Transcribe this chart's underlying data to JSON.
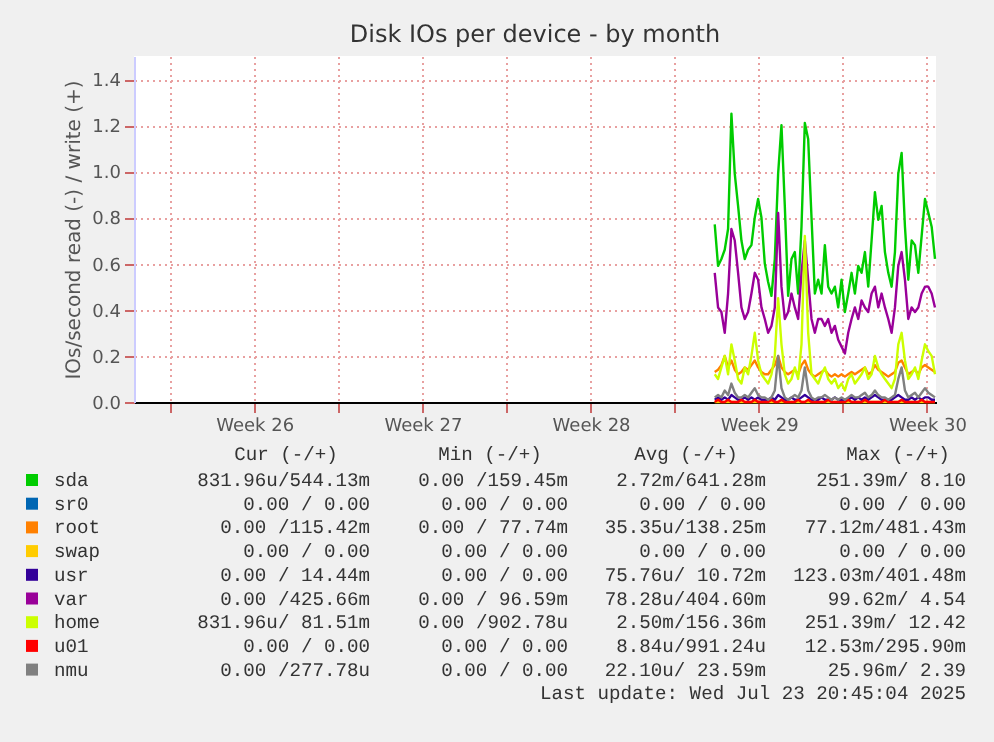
{
  "chart_data": {
    "type": "line",
    "title": "Disk IOs per device - by month",
    "ylabel": "IOs/second read (-) / write (+)",
    "x": [
      "2025-07-14T16:00",
      "2025-07-14T19:20",
      "2025-07-14T22:40",
      "2025-07-15T02:00",
      "2025-07-15T05:20",
      "2025-07-15T08:40",
      "2025-07-15T12:00",
      "2025-07-15T15:20",
      "2025-07-15T18:40",
      "2025-07-15T22:00",
      "2025-07-16T01:20",
      "2025-07-16T04:40",
      "2025-07-16T08:00",
      "2025-07-16T11:20",
      "2025-07-16T14:40",
      "2025-07-16T18:00",
      "2025-07-16T21:20",
      "2025-07-17T00:40",
      "2025-07-17T04:00",
      "2025-07-17T07:20",
      "2025-07-17T10:40",
      "2025-07-17T14:00",
      "2025-07-17T17:20",
      "2025-07-17T20:40",
      "2025-07-18T00:00",
      "2025-07-18T03:20",
      "2025-07-18T06:40",
      "2025-07-18T10:00",
      "2025-07-18T13:20",
      "2025-07-18T16:40",
      "2025-07-18T20:00",
      "2025-07-18T23:20",
      "2025-07-19T02:40",
      "2025-07-19T06:00",
      "2025-07-19T09:20",
      "2025-07-19T12:40",
      "2025-07-19T16:00",
      "2025-07-19T19:20",
      "2025-07-19T22:40",
      "2025-07-20T02:00",
      "2025-07-20T05:20",
      "2025-07-20T08:40",
      "2025-07-20T12:00",
      "2025-07-20T15:20",
      "2025-07-20T18:40",
      "2025-07-20T22:00",
      "2025-07-21T01:20",
      "2025-07-21T04:40",
      "2025-07-21T08:00",
      "2025-07-21T11:20",
      "2025-07-21T14:40",
      "2025-07-21T18:00",
      "2025-07-21T21:20",
      "2025-07-22T00:40",
      "2025-07-22T04:00",
      "2025-07-22T07:20",
      "2025-07-22T10:40",
      "2025-07-22T14:00",
      "2025-07-22T17:20",
      "2025-07-22T20:40",
      "2025-07-23T00:00",
      "2025-07-23T03:20",
      "2025-07-23T06:40",
      "2025-07-23T10:00",
      "2025-07-23T13:20",
      "2025-07-23T16:40",
      "2025-07-23T20:00"
    ],
    "series": [
      {
        "name": "sda",
        "color": "#00cc00",
        "values": [
          0.77,
          0.59,
          0.62,
          0.66,
          0.75,
          1.25,
          0.99,
          0.85,
          0.7,
          0.62,
          0.66,
          0.68,
          0.8,
          0.88,
          0.8,
          0.6,
          0.52,
          0.46,
          0.62,
          0.99,
          1.2,
          0.85,
          0.46,
          0.62,
          0.65,
          0.47,
          0.76,
          1.21,
          1.14,
          0.8,
          0.47,
          0.53,
          0.47,
          0.68,
          0.5,
          0.47,
          0.5,
          0.41,
          0.53,
          0.39,
          0.47,
          0.56,
          0.47,
          0.59,
          0.56,
          0.65,
          0.5,
          0.7,
          0.91,
          0.79,
          0.85,
          0.65,
          0.56,
          0.5,
          0.65,
          0.99,
          1.08,
          0.76,
          0.53,
          0.7,
          0.68,
          0.56,
          0.72,
          0.88,
          0.82,
          0.76,
          0.62
        ]
      },
      {
        "name": "sr0",
        "color": "#0066b3",
        "values": [
          null,
          null,
          null,
          null,
          null,
          null,
          null,
          null,
          null,
          null,
          null,
          null,
          null,
          null,
          null,
          null,
          null,
          null,
          null,
          null,
          null,
          null,
          null,
          null,
          null,
          null,
          null,
          null,
          null,
          null,
          null,
          null,
          null,
          null,
          null,
          null,
          null,
          null,
          null,
          null,
          null,
          null,
          null,
          null,
          null,
          null,
          null,
          null,
          null,
          null,
          null,
          null,
          null,
          null,
          null,
          null,
          null,
          null,
          null,
          null,
          null,
          null,
          null,
          null,
          null,
          null,
          null
        ]
      },
      {
        "name": "root",
        "color": "#ff8000",
        "values": [
          0.13,
          0.14,
          0.16,
          0.2,
          0.15,
          0.18,
          0.14,
          0.12,
          0.13,
          0.15,
          0.14,
          0.16,
          0.18,
          0.15,
          0.13,
          0.12,
          0.12,
          0.14,
          0.16,
          0.2,
          0.15,
          0.13,
          0.12,
          0.13,
          0.14,
          0.12,
          0.16,
          0.18,
          0.14,
          0.12,
          0.11,
          0.12,
          0.13,
          0.14,
          0.12,
          0.11,
          0.12,
          0.11,
          0.12,
          0.11,
          0.12,
          0.13,
          0.12,
          0.13,
          0.14,
          0.15,
          0.12,
          0.13,
          0.16,
          0.14,
          0.13,
          0.12,
          0.11,
          0.12,
          0.13,
          0.17,
          0.18,
          0.15,
          0.12,
          0.13,
          0.14,
          0.12,
          0.15,
          0.16,
          0.15,
          0.14,
          0.13
        ]
      },
      {
        "name": "swap",
        "color": "#ffcc00",
        "values": [
          0,
          0,
          0,
          0,
          0,
          0,
          0,
          0,
          0,
          0,
          0,
          0,
          0,
          0,
          0,
          0,
          0,
          0,
          0,
          0,
          0,
          0,
          0,
          0,
          0,
          0,
          0,
          0,
          0,
          0,
          0,
          0,
          0,
          0,
          0,
          0,
          0,
          0,
          0,
          0,
          0,
          0,
          0,
          0,
          0,
          0,
          0,
          0,
          0,
          0,
          0,
          0,
          0,
          0,
          0,
          0,
          0,
          0,
          0,
          0,
          0,
          0,
          0,
          0,
          0,
          0,
          0
        ]
      },
      {
        "name": "usr",
        "color": "#330099",
        "values": [
          0.01,
          0.02,
          0.01,
          0.02,
          0.01,
          0.03,
          0.02,
          0.01,
          0.01,
          0.02,
          0.01,
          0.02,
          0.01,
          0.02,
          0.01,
          0.01,
          0.01,
          0.02,
          0.01,
          0.03,
          0.02,
          0.01,
          0.01,
          0.02,
          0.01,
          0.01,
          0.02,
          0.03,
          0.02,
          0.01,
          0.01,
          0.01,
          0.02,
          0.01,
          0.01,
          0.01,
          0.02,
          0.01,
          0.01,
          0.01,
          0.01,
          0.02,
          0.01,
          0.02,
          0.01,
          0.02,
          0.01,
          0.02,
          0.03,
          0.02,
          0.01,
          0.01,
          0.01,
          0.01,
          0.02,
          0.03,
          0.02,
          0.01,
          0.01,
          0.02,
          0.01,
          0.02,
          0.01,
          0.02,
          0.02,
          0.01,
          0.01
        ]
      },
      {
        "name": "var",
        "color": "#990099",
        "values": [
          0.56,
          0.41,
          0.39,
          0.3,
          0.47,
          0.75,
          0.7,
          0.56,
          0.41,
          0.36,
          0.39,
          0.47,
          0.56,
          0.53,
          0.41,
          0.36,
          0.3,
          0.33,
          0.41,
          0.82,
          0.5,
          0.36,
          0.39,
          0.47,
          0.41,
          0.36,
          0.56,
          0.7,
          0.53,
          0.36,
          0.3,
          0.36,
          0.36,
          0.33,
          0.36,
          0.3,
          0.33,
          0.27,
          0.24,
          0.21,
          0.3,
          0.36,
          0.41,
          0.36,
          0.44,
          0.41,
          0.39,
          0.47,
          0.5,
          0.41,
          0.47,
          0.41,
          0.36,
          0.3,
          0.41,
          0.59,
          0.65,
          0.53,
          0.36,
          0.41,
          0.39,
          0.41,
          0.47,
          0.5,
          0.5,
          0.47,
          0.41
        ]
      },
      {
        "name": "home",
        "color": "#ccff00",
        "values": [
          0.12,
          0.1,
          0.15,
          0.2,
          0.12,
          0.25,
          0.18,
          0.1,
          0.08,
          0.15,
          0.12,
          0.2,
          0.3,
          0.18,
          0.12,
          0.1,
          0.08,
          0.12,
          0.2,
          0.45,
          0.25,
          0.12,
          0.08,
          0.1,
          0.15,
          0.1,
          0.25,
          0.72,
          0.3,
          0.12,
          0.1,
          0.08,
          0.12,
          0.15,
          0.1,
          0.08,
          0.1,
          0.06,
          0.08,
          0.05,
          0.1,
          0.12,
          0.08,
          0.1,
          0.12,
          0.15,
          0.1,
          0.12,
          0.2,
          0.15,
          0.12,
          0.1,
          0.08,
          0.06,
          0.1,
          0.25,
          0.3,
          0.18,
          0.1,
          0.12,
          0.15,
          0.1,
          0.18,
          0.25,
          0.22,
          0.2,
          0.12
        ]
      },
      {
        "name": "u01",
        "color": "#ff0000",
        "values": [
          0.0,
          0.01,
          0.0,
          0.0,
          0.01,
          0.0,
          0.0,
          0.0,
          0.01,
          0.0,
          0.0,
          0.0,
          0.01,
          0.0,
          0.0,
          0.0,
          0.0,
          0.01,
          0.0,
          0.0,
          0.01,
          0.0,
          0.0,
          0.0,
          0.0,
          0.01,
          0.0,
          0.0,
          0.01,
          0.0,
          0.0,
          0.0,
          0.0,
          0.0,
          0.01,
          0.0,
          0.0,
          0.0,
          0.0,
          0.0,
          0.01,
          0.0,
          0.0,
          0.0,
          0.0,
          0.01,
          0.0,
          0.0,
          0.0,
          0.0,
          0.0,
          0.01,
          0.0,
          0.0,
          0.0,
          0.0,
          0.01,
          0.0,
          0.0,
          0.0,
          0.0,
          0.0,
          0.01,
          0.0,
          0.0,
          0.0,
          0.0
        ]
      },
      {
        "name": "nmu",
        "color": "#808080",
        "values": [
          0.02,
          0.03,
          0.02,
          0.05,
          0.03,
          0.08,
          0.04,
          0.02,
          0.02,
          0.03,
          0.02,
          0.04,
          0.06,
          0.03,
          0.02,
          0.02,
          0.01,
          0.02,
          0.05,
          0.2,
          0.06,
          0.02,
          0.01,
          0.02,
          0.03,
          0.02,
          0.05,
          0.15,
          0.05,
          0.02,
          0.01,
          0.02,
          0.02,
          0.03,
          0.02,
          0.01,
          0.02,
          0.01,
          0.02,
          0.01,
          0.02,
          0.03,
          0.02,
          0.02,
          0.03,
          0.04,
          0.02,
          0.03,
          0.05,
          0.03,
          0.02,
          0.02,
          0.01,
          0.02,
          0.03,
          0.1,
          0.15,
          0.05,
          0.02,
          0.03,
          0.04,
          0.02,
          0.04,
          0.06,
          0.04,
          0.03,
          0.02
        ]
      }
    ],
    "xlim": [
      "2025-06-20T12:00",
      "2025-07-23T21:00"
    ],
    "xticks": [
      {
        "value": "2025-06-22",
        "label": null
      },
      {
        "value": "2025-06-25T12:00",
        "label": "Week 26"
      },
      {
        "value": "2025-06-29",
        "label": null
      },
      {
        "value": "2025-07-02T12:00",
        "label": "Week 27"
      },
      {
        "value": "2025-07-06",
        "label": null
      },
      {
        "value": "2025-07-09T12:00",
        "label": "Week 28"
      },
      {
        "value": "2025-07-13",
        "label": null
      },
      {
        "value": "2025-07-16T12:00",
        "label": "Week 29"
      },
      {
        "value": "2025-07-20",
        "label": null
      },
      {
        "value": "2025-07-23T12:00",
        "label": "Week 30"
      }
    ],
    "ylim": [
      0,
      1.5
    ],
    "yticks": [
      {
        "value": 0,
        "label": "0.0"
      },
      {
        "value": 0.2,
        "label": "0.2"
      },
      {
        "value": 0.4,
        "label": "0.4"
      },
      {
        "value": 0.6,
        "label": "0.6"
      },
      {
        "value": 0.8,
        "label": "0.8"
      },
      {
        "value": 1.0,
        "label": "1.0"
      },
      {
        "value": 1.2,
        "label": "1.2"
      },
      {
        "value": 1.4,
        "label": "1.4"
      }
    ],
    "grid": true,
    "legend": "bottom",
    "line_style": "solid",
    "annotations": [
      "Cur (-/+)",
      "Min (-/+)",
      "Avg (-/+)",
      "Max (-/+)",
      "831.96u/544.13m",
      "0.00 /159.45m",
      "2.72m/641.28m",
      "251.39m/  8.10",
      "0.00 /  0.00",
      "0.00 /  0.00",
      "0.00 /  0.00",
      "0.00 /  0.00",
      "0.00 /115.42m",
      "0.00 / 77.74m",
      "35.35u/138.25m",
      "77.12m/481.43m",
      "0.00 /  0.00",
      "0.00 /  0.00",
      "0.00 /  0.00",
      "0.00 /  0.00",
      "0.00 / 14.44m",
      "0.00 /  0.00",
      "75.76u/ 10.72m",
      "123.03m/401.48m",
      "0.00 /425.66m",
      "0.00 / 96.59m",
      "78.28u/404.60m",
      "99.62m/  4.54",
      "831.96u/ 81.51m",
      "0.00 /902.78u",
      "2.50m/156.36m",
      "251.39m/ 12.42",
      "0.00 /  0.00",
      "0.00 /  0.00",
      "8.84u/991.24u",
      "12.53m/295.90m",
      "0.00 /277.78u",
      "0.00 /  0.00",
      "22.10u/ 23.59m",
      "25.96m/  2.39",
      "Last update: Wed Jul 23 20:45:04 2025"
    ]
  }
}
